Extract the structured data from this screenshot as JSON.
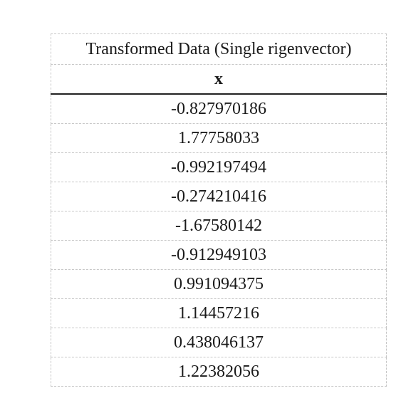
{
  "table": {
    "title": "Transformed Data (Single rigenvector)",
    "column_header": "x",
    "rows": [
      "-0.827970186",
      "1.77758033",
      "-0.992197494",
      "-0.274210416",
      "-1.67580142",
      "-0.912949103",
      "0.991094375",
      "1.14457216",
      "0.438046137",
      "1.22382056"
    ]
  }
}
